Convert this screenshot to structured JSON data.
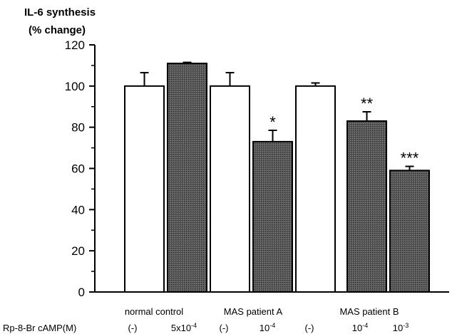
{
  "chart_data": {
    "type": "bar",
    "ylabel": [
      "IL-6 synthesis",
      "(% change)"
    ],
    "ylim": [
      0,
      120
    ],
    "yticks": [
      0,
      20,
      40,
      60,
      80,
      100,
      120
    ],
    "row_label": "Rp-8-Br cAMP(M)",
    "groups": [
      "normal control",
      "MAS patient A",
      "MAS patient B"
    ],
    "bars": [
      {
        "group": 0,
        "dose": "(-)",
        "value": 100,
        "error": 6.5,
        "fill": "open",
        "sig": ""
      },
      {
        "group": 0,
        "dose": "5x10-4",
        "value": 111,
        "error": 0.5,
        "fill": "hatched",
        "sig": ""
      },
      {
        "group": 1,
        "dose": "(-)",
        "value": 100,
        "error": 6.5,
        "fill": "open",
        "sig": ""
      },
      {
        "group": 1,
        "dose": "10-4",
        "value": 73,
        "error": 5.5,
        "fill": "hatched",
        "sig": "*"
      },
      {
        "group": 2,
        "dose": "(-)",
        "value": 100,
        "error": 1.5,
        "fill": "open",
        "sig": ""
      },
      {
        "group": 2,
        "dose": "10-4",
        "value": 83,
        "error": 4.5,
        "fill": "hatched",
        "sig": "**"
      },
      {
        "group": 2,
        "dose": "10-3",
        "value": 59,
        "error": 2.0,
        "fill": "hatched",
        "sig": "***"
      }
    ],
    "dose_display": [
      {
        "base": "(-)",
        "sup": ""
      },
      {
        "base": "5x10",
        "sup": "-4"
      },
      {
        "base": "(-)",
        "sup": ""
      },
      {
        "base": "10",
        "sup": "-4"
      },
      {
        "base": "(-)",
        "sup": ""
      },
      {
        "base": "10",
        "sup": "-4"
      },
      {
        "base": "10",
        "sup": "-3"
      }
    ],
    "grid": false,
    "colors": {
      "open": "#ffffff",
      "hatched": "#4a4a4a",
      "stroke": "#000000"
    }
  }
}
